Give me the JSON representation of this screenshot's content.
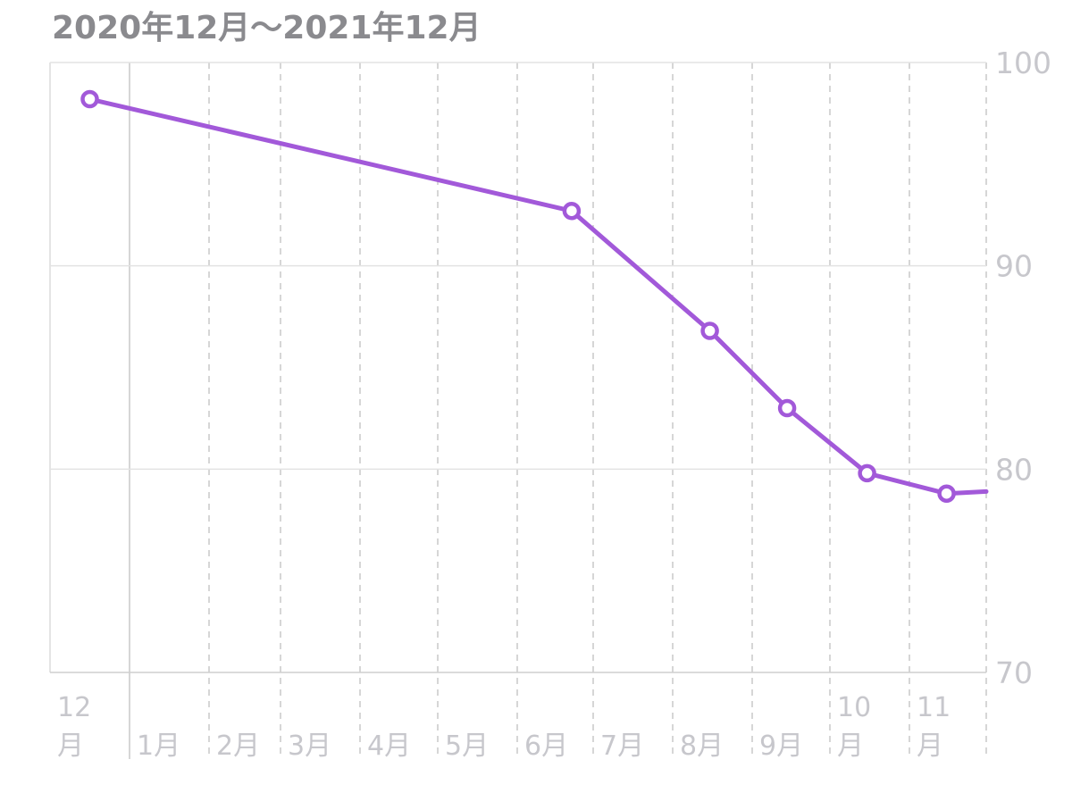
{
  "title": "2020年12月〜2021年12月",
  "chart_data": {
    "type": "line",
    "title": "2020年12月〜2021年12月",
    "xlabel": "",
    "ylabel": "",
    "ylim": [
      70,
      100
    ],
    "yticks": [
      "70",
      "80",
      "90",
      "100"
    ],
    "y_axis_position": "right",
    "grid": true,
    "months": [
      {
        "line1": "12",
        "line2": "月"
      },
      {
        "line1": "1月",
        "line2": ""
      },
      {
        "line1": "2月",
        "line2": ""
      },
      {
        "line1": "3月",
        "line2": ""
      },
      {
        "line1": "4月",
        "line2": ""
      },
      {
        "line1": "5月",
        "line2": ""
      },
      {
        "line1": "6月",
        "line2": ""
      },
      {
        "line1": "7月",
        "line2": ""
      },
      {
        "line1": "8月",
        "line2": ""
      },
      {
        "line1": "9月",
        "line2": ""
      },
      {
        "line1": "10",
        "line2": "月"
      },
      {
        "line1": "11",
        "line2": "月"
      }
    ],
    "series": [
      {
        "color": "#a259d9",
        "points": [
          {
            "x": "2020-12-16",
            "y": 98.2
          },
          {
            "x": "2021-06-22",
            "y": 92.7
          },
          {
            "x": "2021-08-15",
            "y": 86.8
          },
          {
            "x": "2021-09-14",
            "y": 83.0
          },
          {
            "x": "2021-10-15",
            "y": 79.8
          },
          {
            "x": "2021-11-15",
            "y": 78.8
          }
        ],
        "end_value": 78.9
      }
    ]
  }
}
